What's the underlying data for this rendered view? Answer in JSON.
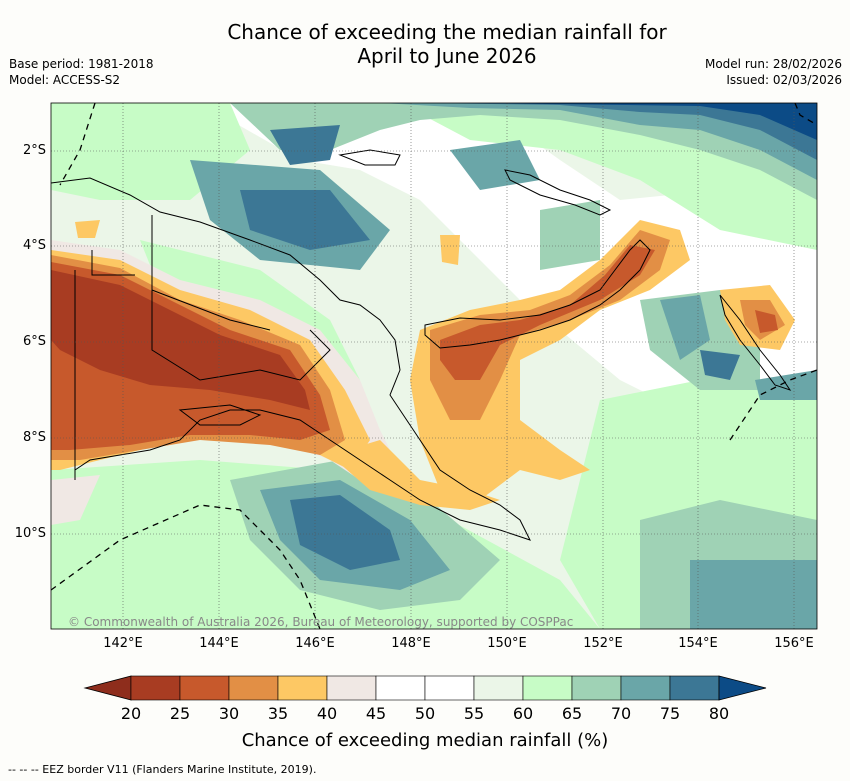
{
  "title": {
    "line1": "Chance of exceeding the median rainfall for",
    "line2": "April to June 2026"
  },
  "meta_left": {
    "base_period": "Base period: 1981-2018",
    "model": "Model: ACCESS-S2"
  },
  "meta_right": {
    "model_run": "Model run: 28/02/2026",
    "issued": "Issued: 02/03/2026"
  },
  "map": {
    "region": "Papua New Guinea",
    "lon_labels": [
      "142°E",
      "144°E",
      "146°E",
      "148°E",
      "150°E",
      "152°E",
      "154°E",
      "156°E"
    ],
    "lat_labels": [
      "2°S",
      "4°S",
      "6°S",
      "8°S",
      "10°S"
    ],
    "credit": "© Commonwealth of Australia 2026, Bureau of Meteorology, supported by COSPPac"
  },
  "colorbar": {
    "ticks": [
      "20",
      "25",
      "30",
      "35",
      "40",
      "45",
      "50",
      "55",
      "60",
      "65",
      "70",
      "75",
      "80"
    ],
    "colors": [
      "#a83c22",
      "#c7592c",
      "#e28f45",
      "#fdc864",
      "#f0e8e4",
      "#ffffff",
      "#ffffff",
      "#ebf6e8",
      "#c7fcc6",
      "#9fd2b5",
      "#6aa6a8",
      "#3c7795"
    ],
    "under_color": "#8e2d1c",
    "over_color": "#0c4b86",
    "label": "Chance of exceeding median rainfall (%)"
  },
  "footnote": "--  --  -- EEZ border V11 (Flanders Marine Institute, 2019)."
}
